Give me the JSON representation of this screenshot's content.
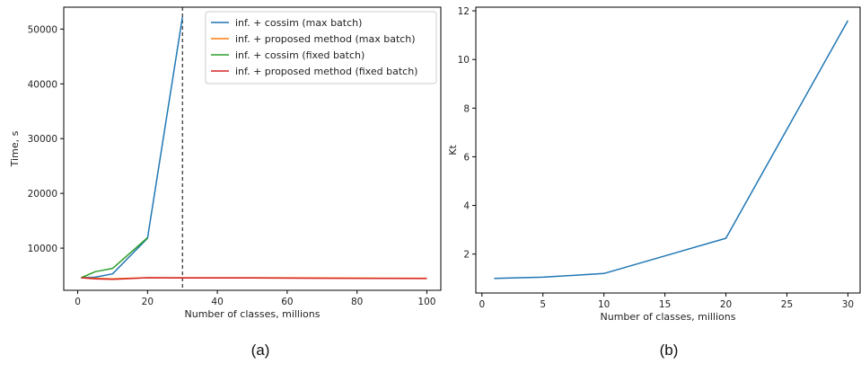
{
  "chart_data": [
    {
      "type": "line",
      "xlabel": "Number of classes, millions",
      "ylabel": "Time, s",
      "xlim": [
        -4,
        104
      ],
      "ylim": [
        2300,
        54000
      ],
      "xticks": [
        0,
        20,
        40,
        60,
        80,
        100
      ],
      "yticks": [
        10000,
        20000,
        30000,
        40000,
        50000
      ],
      "grid": false,
      "legend_position": "top-right",
      "vline": {
        "x": 30,
        "style": "dashed",
        "color": "#000000"
      },
      "series": [
        {
          "name": "inf. + cossim (max batch)",
          "color": "#1f77b4",
          "x": [
            1,
            5,
            10,
            20,
            30
          ],
          "y": [
            4600,
            4700,
            5300,
            11800,
            52200
          ]
        },
        {
          "name": "inf. + proposed method (max batch)",
          "color": "#ff7f0e",
          "x": [
            1,
            5,
            10,
            20,
            30,
            50,
            70,
            100
          ],
          "y": [
            4600,
            4500,
            4400,
            4600,
            4600,
            4600,
            4550,
            4500
          ]
        },
        {
          "name": "inf. + cossim (fixed batch)",
          "color": "#2ca02c",
          "x": [
            1,
            5,
            10,
            20
          ],
          "y": [
            4600,
            5700,
            6300,
            11900
          ]
        },
        {
          "name": "inf. + proposed method (fixed batch)",
          "color": "#d62728",
          "x": [
            1,
            5,
            10,
            20,
            30,
            50,
            70,
            100
          ],
          "y": [
            4600,
            4400,
            4300,
            4600,
            4550,
            4550,
            4500,
            4450
          ]
        }
      ],
      "caption": "(a)"
    },
    {
      "type": "line",
      "xlabel": "Number of classes, millions",
      "ylabel": "Kt",
      "xlim": [
        -0.5,
        31
      ],
      "ylim": [
        0.4,
        12.15
      ],
      "xticks": [
        0,
        5,
        10,
        15,
        20,
        25,
        30
      ],
      "yticks": [
        2,
        4,
        6,
        8,
        10,
        12
      ],
      "grid": false,
      "series": [
        {
          "name": "",
          "color": "#1f77b4",
          "x": [
            1,
            5,
            10,
            20,
            30
          ],
          "y": [
            1.0,
            1.05,
            1.2,
            2.65,
            11.6
          ]
        }
      ],
      "caption": "(b)"
    }
  ]
}
